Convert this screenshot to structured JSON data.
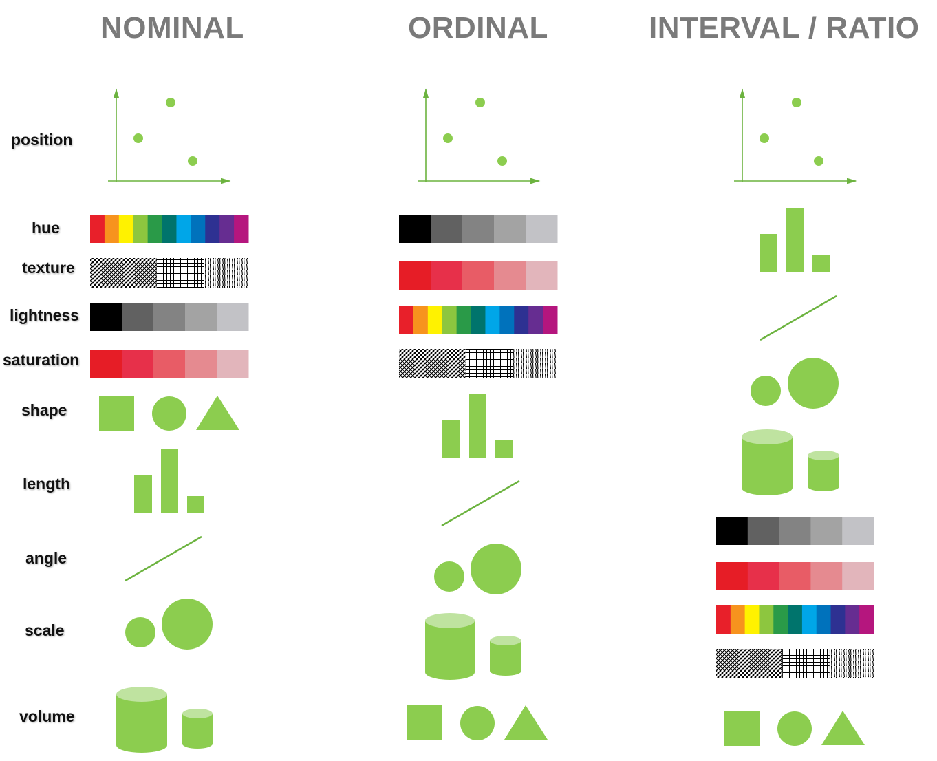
{
  "columns": [
    "NOMINAL",
    "ORDINAL",
    "INTERVAL / RATIO"
  ],
  "rows": [
    "position",
    "hue",
    "texture",
    "lightness",
    "saturation",
    "shape",
    "length",
    "angle",
    "scale",
    "volume"
  ],
  "colors": {
    "green": "#8ccd4f",
    "green_light": "#bfe3a0",
    "axis": "#6cb33f",
    "hue": [
      "#e8202a",
      "#f7931e",
      "#fff200",
      "#8dc63f",
      "#2a9a48",
      "#00746c",
      "#00a6e8",
      "#0072bc",
      "#2e3192",
      "#662d91",
      "#b5167e"
    ],
    "lightness": [
      "#000000",
      "#616161",
      "#838383",
      "#a3a3a3",
      "#c2c2c6"
    ],
    "saturation": [
      "#e61d26",
      "#e7304a",
      "#e85c66",
      "#e58a90",
      "#e2b5bb"
    ]
  }
}
